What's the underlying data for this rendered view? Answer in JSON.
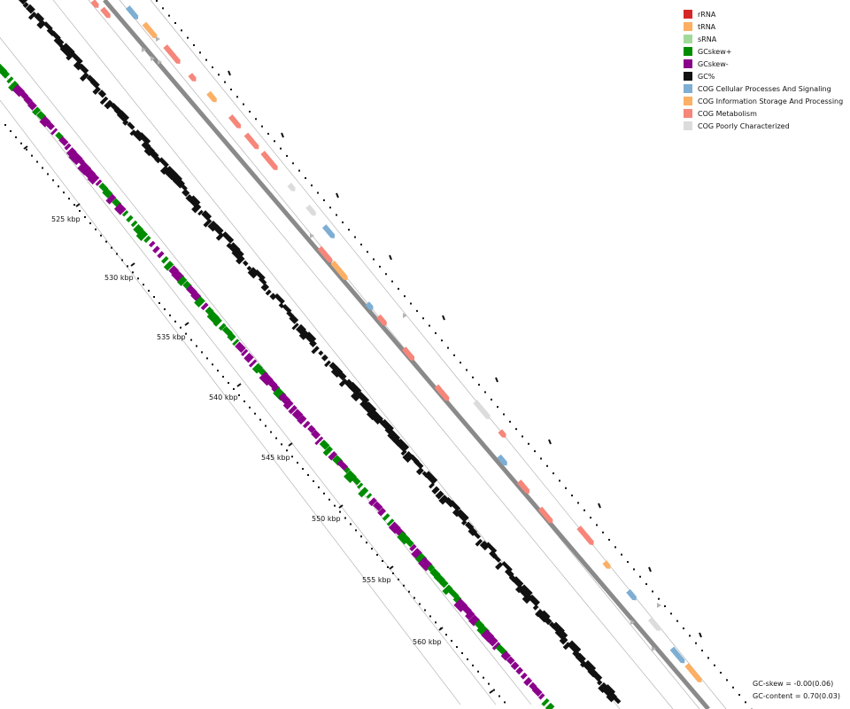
{
  "legend": [
    {
      "label": "rRNA",
      "color": "#d62728"
    },
    {
      "label": "tRNA",
      "color": "#fdae61"
    },
    {
      "label": "sRNA",
      "color": "#a1d99b"
    },
    {
      "label": "GCskew+",
      "color": "#008c00"
    },
    {
      "label": "GCskew-",
      "color": "#8b008b"
    },
    {
      "label": "GC%",
      "color": "#111111"
    },
    {
      "label": "COG Cellular Processes And Signaling",
      "color": "#7eaed3"
    },
    {
      "label": "COG Information Storage And Processing",
      "color": "#fbb065"
    },
    {
      "label": "COG Metabolism",
      "color": "#f6867a"
    },
    {
      "label": "COG Poorly Characterized",
      "color": "#dcdcdc"
    }
  ],
  "position_labels": [
    "525 kbp",
    "530 kbp",
    "535 kbp",
    "540 kbp",
    "545 kbp",
    "550 kbp",
    "555 kbp",
    "560 kbp"
  ],
  "stats": {
    "gc_skew": "GC-skew = -0.00(0.06)",
    "gc_content": "GC-content = 0.70(0.03)"
  },
  "colors": {
    "backbone": "#8a8a8a",
    "track_line": "#aaaaaa",
    "hypothetical": "#b4b4b4"
  }
}
